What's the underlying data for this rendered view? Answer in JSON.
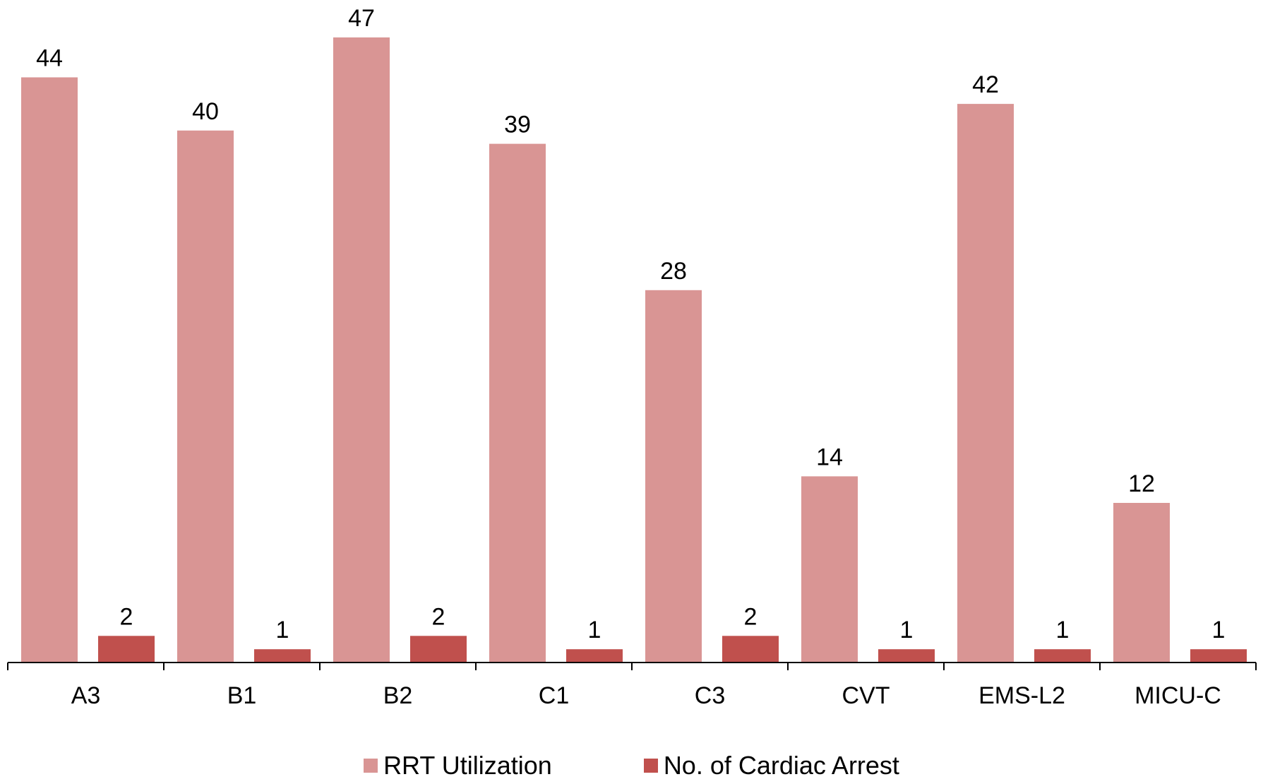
{
  "chart_data": {
    "type": "bar",
    "categories": [
      "A3",
      "B1",
      "B2",
      "C1",
      "C3",
      "CVT",
      "EMS-L2",
      "MICU-C"
    ],
    "series": [
      {
        "name": "RRT Utilization",
        "values": [
          44,
          40,
          47,
          39,
          28,
          14,
          42,
          12
        ],
        "color": "#d99594"
      },
      {
        "name": "No. of Cardiac Arrest",
        "values": [
          2,
          1,
          2,
          1,
          2,
          1,
          1,
          1
        ],
        "color": "#c0504d"
      }
    ],
    "ylim": [
      0,
      47
    ],
    "grid": false,
    "legend_position": "bottom"
  }
}
